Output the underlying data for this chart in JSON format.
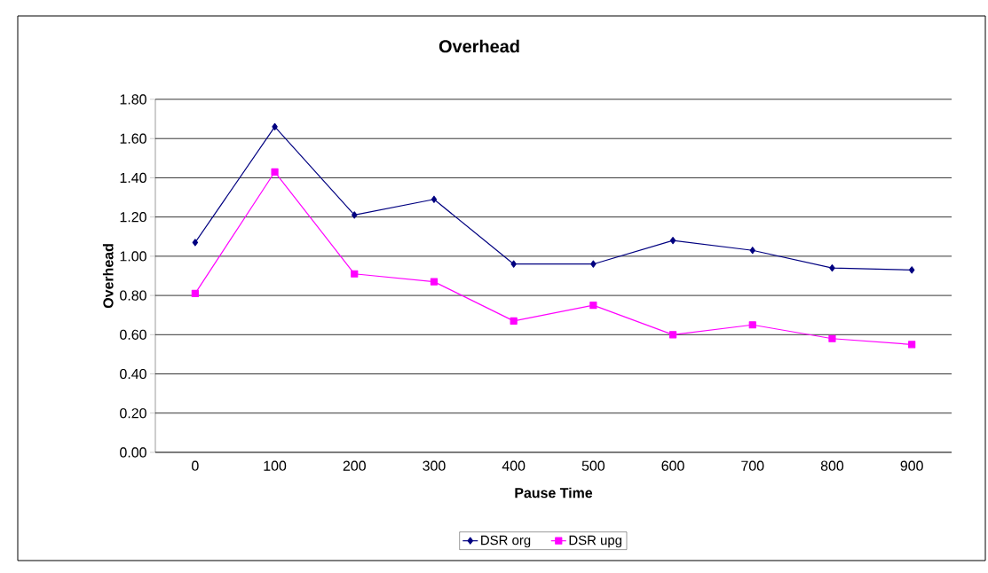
{
  "chart_data": {
    "type": "line",
    "title": "Overhead",
    "xlabel": "Pause Time",
    "ylabel": "Overhead",
    "categories": [
      "0",
      "100",
      "200",
      "300",
      "400",
      "500",
      "600",
      "700",
      "800",
      "900"
    ],
    "series": [
      {
        "name": "DSR org",
        "color": "#000080",
        "marker": "diamond",
        "values": [
          1.07,
          1.66,
          1.21,
          1.29,
          0.96,
          0.96,
          1.08,
          1.03,
          0.94,
          0.93
        ]
      },
      {
        "name": "DSR upg",
        "color": "#ff00ff",
        "marker": "square",
        "values": [
          0.81,
          1.43,
          0.91,
          0.87,
          0.67,
          0.75,
          0.6,
          0.65,
          0.58,
          0.55
        ]
      }
    ],
    "ylim": [
      0,
      1.8
    ],
    "yticks": [
      {
        "value": 0,
        "label": "0.00"
      },
      {
        "value": 0.2,
        "label": "0.20"
      },
      {
        "value": 0.4,
        "label": "0.40"
      },
      {
        "value": 0.6,
        "label": "0.60"
      },
      {
        "value": 0.8,
        "label": "0.80"
      },
      {
        "value": 1.0,
        "label": "1.00"
      },
      {
        "value": 1.2,
        "label": "1.20"
      },
      {
        "value": 1.4,
        "label": "1.40"
      },
      {
        "value": 1.6,
        "label": "1.60"
      },
      {
        "value": 1.8,
        "label": "1.80"
      }
    ],
    "grid": "y",
    "legend": "bottom",
    "line_style": "solid"
  }
}
